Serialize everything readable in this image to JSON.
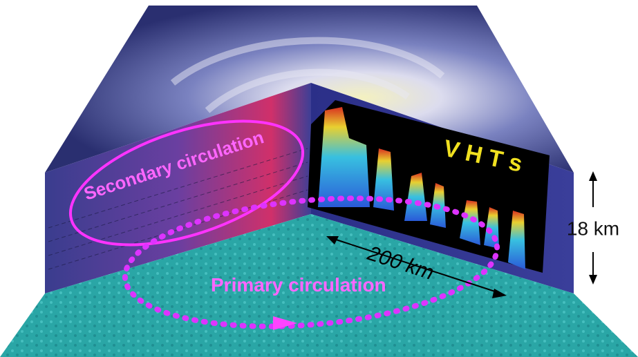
{
  "labels": {
    "secondary": "Secondary circulation",
    "primary": "Primary circulation",
    "vhts": "V H T s",
    "distance": "200 km",
    "height": "18 km"
  }
}
